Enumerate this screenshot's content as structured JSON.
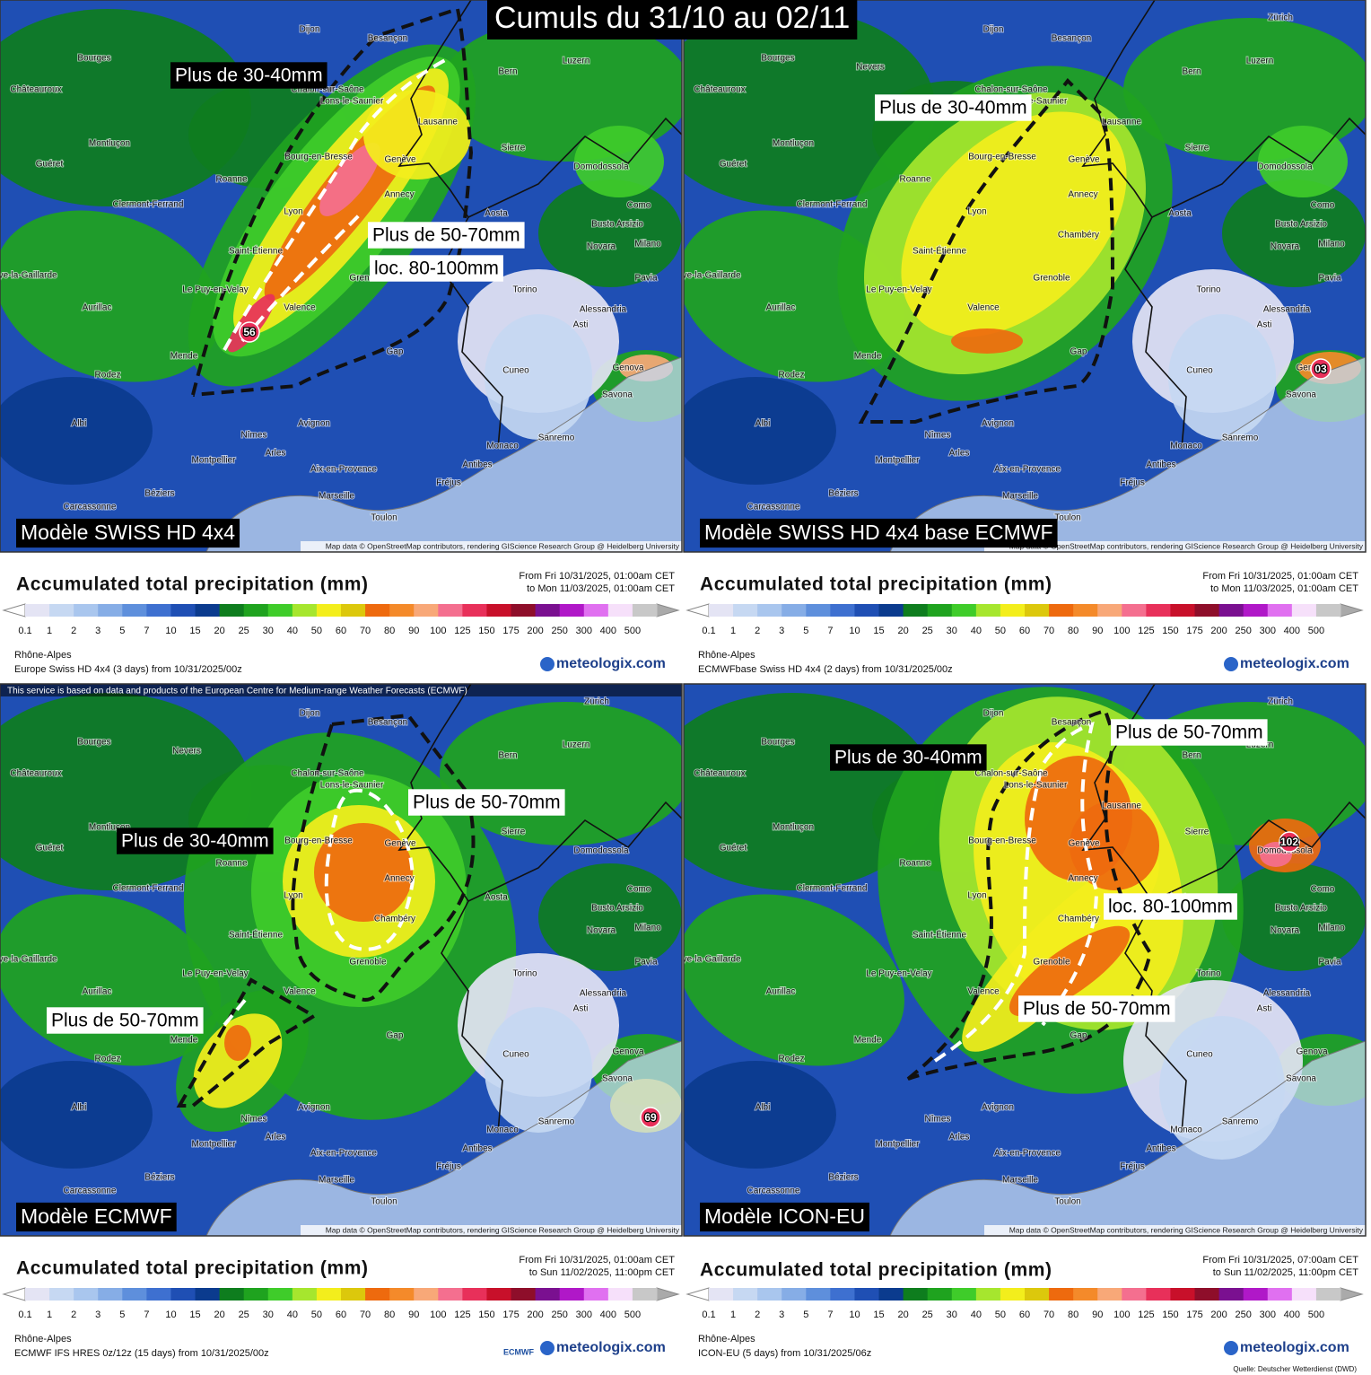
{
  "title": "Cumuls du 31/10 au 02/11",
  "cities": [
    "Dijon",
    "Besançon",
    "Bourges",
    "Nevers",
    "Bern",
    "Zürich",
    "Luzern",
    "Châteauroux",
    "Chalon-sur-Saône",
    "Lons-le-Saunier",
    "Lausanne",
    "Montluçon",
    "Sierre",
    "Bourg-en-Bresse",
    "Genève",
    "Guéret",
    "Roanne",
    "Domodossola",
    "Annecy",
    "Clermont-Ferrand",
    "Lyon",
    "Aosta",
    "Como",
    "Busto Arsizio",
    "Saint-Étienne",
    "Chambéry",
    "Novara",
    "Milano",
    "Grenoble",
    "Le Puy-en-Velay",
    "Brive-la-Gaillarde",
    "Torino",
    "Pavia",
    "Aurillac",
    "Valence",
    "Alessandria",
    "Asti",
    "Mende",
    "Gap",
    "Rodez",
    "Cuneo",
    "Genova",
    "Savona",
    "Albi",
    "Avignon",
    "Nîmes",
    "Arles",
    "Monaco",
    "Sanremo",
    "Montpellier",
    "Antibes",
    "Aix-en-Provence",
    "Fréjus",
    "Béziers",
    "Marseille",
    "Carcassonne",
    "Toulon"
  ],
  "attribution": "Map data © OpenStreetMap contributors, rendering GIScience Research Group @ Heidelberg University",
  "legend": {
    "title": "Accumulated total precipitation (mm)",
    "region": "Rhône-Alpes",
    "brand": "meteologix.com",
    "scale": [
      0.1,
      1,
      2,
      3,
      5,
      7,
      10,
      15,
      20,
      25,
      30,
      40,
      50,
      60,
      70,
      80,
      90,
      100,
      125,
      150,
      175,
      200,
      250,
      300,
      400,
      500
    ],
    "colors": [
      "#e4e4f4",
      "#c6d8f2",
      "#a9c6ee",
      "#86ade6",
      "#5e8fdc",
      "#3e70d0",
      "#1f4fb4",
      "#0b3b8e",
      "#0e7d1e",
      "#1fa31f",
      "#3fcc2a",
      "#a6e62e",
      "#f3ee1c",
      "#dcc80c",
      "#ee6a0e",
      "#f48a2a",
      "#f8a878",
      "#f46f8f",
      "#e8305a",
      "#c8102a",
      "#8e0e2a",
      "#7a1090",
      "#b018c8",
      "#e070f0",
      "#f6e0fa",
      "#c8c8c8"
    ]
  },
  "panels": [
    {
      "model": "Modèle SWISS HD 4x4",
      "period": [
        "From Fri 10/31/2025, 01:00am CET",
        "to Mon 11/03/2025, 01:00am CET"
      ],
      "run": "Europe Swiss HD 4x4 (3 days) from 10/31/2025/00z",
      "peak": "56",
      "annotations": [
        "Plus de 30-40mm",
        "Plus de 50-70mm",
        "loc. 80-100mm"
      ]
    },
    {
      "model": "Modèle SWISS HD 4x4 base ECMWF",
      "period": [
        "From Fri 10/31/2025, 01:00am CET",
        "to Mon 11/03/2025, 01:00am CET"
      ],
      "run": "ECMWFbase Swiss HD 4x4 (2 days) from 10/31/2025/00z",
      "peak": "03",
      "annotations": [
        "Plus de 30-40mm"
      ]
    },
    {
      "model": "Modèle ECMWF",
      "period": [
        "From Fri 10/31/2025, 01:00am CET",
        "to Sun 11/02/2025, 11:00pm CET"
      ],
      "run": "ECMWF IFS HRES 0z/12z (15 days) from 10/31/2025/00z",
      "peak": "69",
      "notice": "This service is based on data and products of the European Centre for Medium-range Weather Forecasts (ECMWF)",
      "logo": "ECMWF",
      "annotations": [
        "Plus de 50-70mm",
        "Plus de 30-40mm",
        "Plus de 50-70mm"
      ]
    },
    {
      "model": "Modèle ICON-EU",
      "period": [
        "From Fri 10/31/2025, 07:00am CET",
        "to Sun 11/02/2025, 11:00pm CET"
      ],
      "run": "ICON-EU (5 days) from 10/31/2025/06z",
      "peak": "102",
      "source": "Quelle: Deutscher Wetterdienst (DWD)",
      "annotations": [
        "Plus de 30-40mm",
        "Plus de 50-70mm",
        "loc. 80-100mm",
        "Plus de 50-70mm"
      ]
    }
  ]
}
